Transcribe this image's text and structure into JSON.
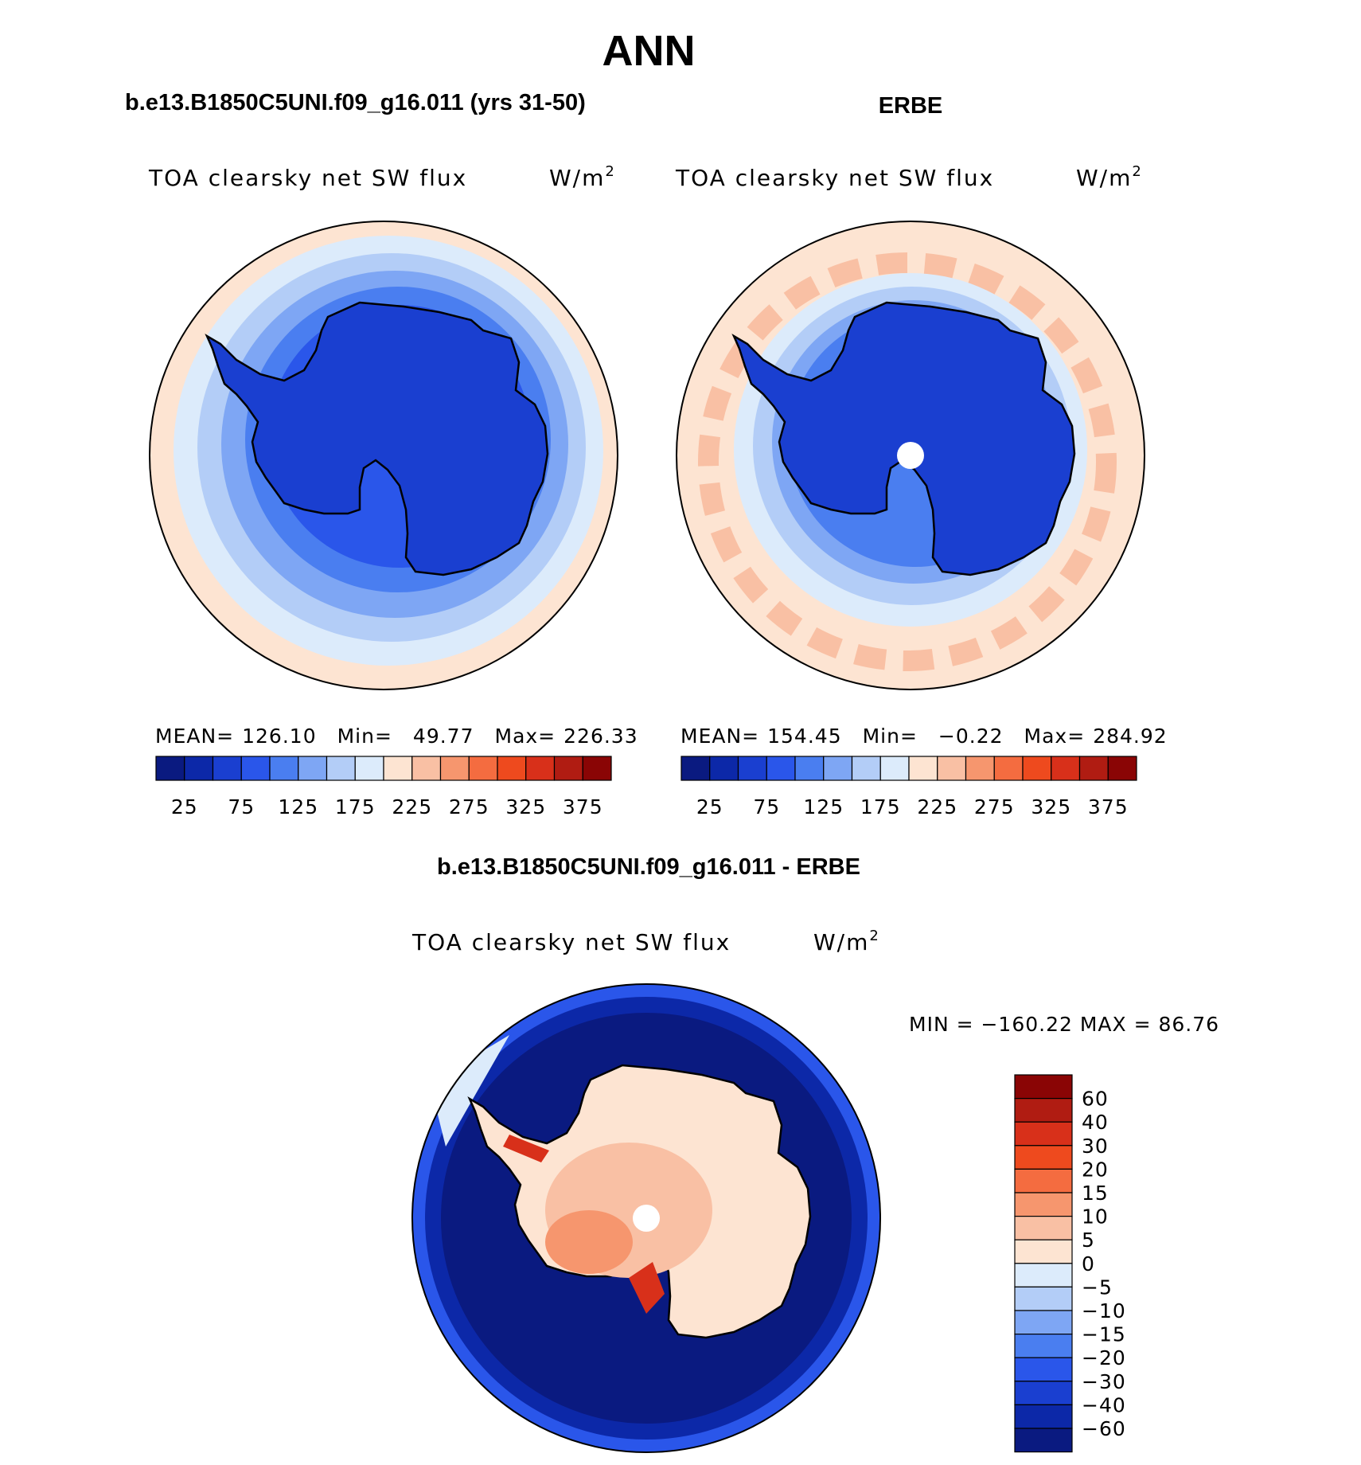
{
  "page_title": "ANN",
  "panels": {
    "model": {
      "case_title": "b.e13.B1850C5UNI.f09_g16.011 (yrs 31-50)",
      "variable": "TOA clearsky net SW flux",
      "units_base": "W/m",
      "units_exp": "2",
      "stats": {
        "mean_label": "MEAN=",
        "mean": "126.10",
        "min_label": "Min=",
        "min": "49.77",
        "max_label": "Max=",
        "max": "226.33"
      }
    },
    "obs": {
      "case_title": "ERBE",
      "variable": "TOA clearsky net SW flux",
      "units_base": "W/m",
      "units_exp": "2",
      "stats": {
        "mean_label": "MEAN=",
        "mean": "154.45",
        "min_label": "Min=",
        "min": "−0.22",
        "max_label": "Max=",
        "max": "284.92"
      }
    },
    "diff": {
      "case_title": "b.e13.B1850C5UNI.f09_g16.011 - ERBE",
      "variable": "TOA clearsky net SW flux",
      "units_base": "W/m",
      "units_exp": "2",
      "minmax": "MIN = −160.22 MAX =  86.76"
    }
  },
  "colorbar_abs": {
    "colors": [
      "#0a1a80",
      "#0c28a8",
      "#1a3fd0",
      "#2a56ea",
      "#4a7ef0",
      "#7ea6f4",
      "#b3cdf7",
      "#dcebfb",
      "#fde4d2",
      "#f9c0a4",
      "#f6966e",
      "#f46c40",
      "#ee4a1e",
      "#d8301a",
      "#b01c12",
      "#8a0505"
    ],
    "tick_labels": [
      "25",
      "75",
      "125",
      "175",
      "225",
      "275",
      "325",
      "375"
    ]
  },
  "colorbar_diff": {
    "colors": [
      "#8a0505",
      "#b01c12",
      "#d8301a",
      "#ee4a1e",
      "#f46c40",
      "#f6966e",
      "#f9c0a4",
      "#fde4d2",
      "#dcebfb",
      "#b3cdf7",
      "#7ea6f4",
      "#4a7ef0",
      "#2a56ea",
      "#1a3fd0",
      "#0c28a8",
      "#0a1a80"
    ],
    "tick_labels": [
      "60",
      "40",
      "30",
      "20",
      "15",
      "10",
      "5",
      "0",
      "−5",
      "−10",
      "−15",
      "−20",
      "−30",
      "−40",
      "−60"
    ]
  }
}
